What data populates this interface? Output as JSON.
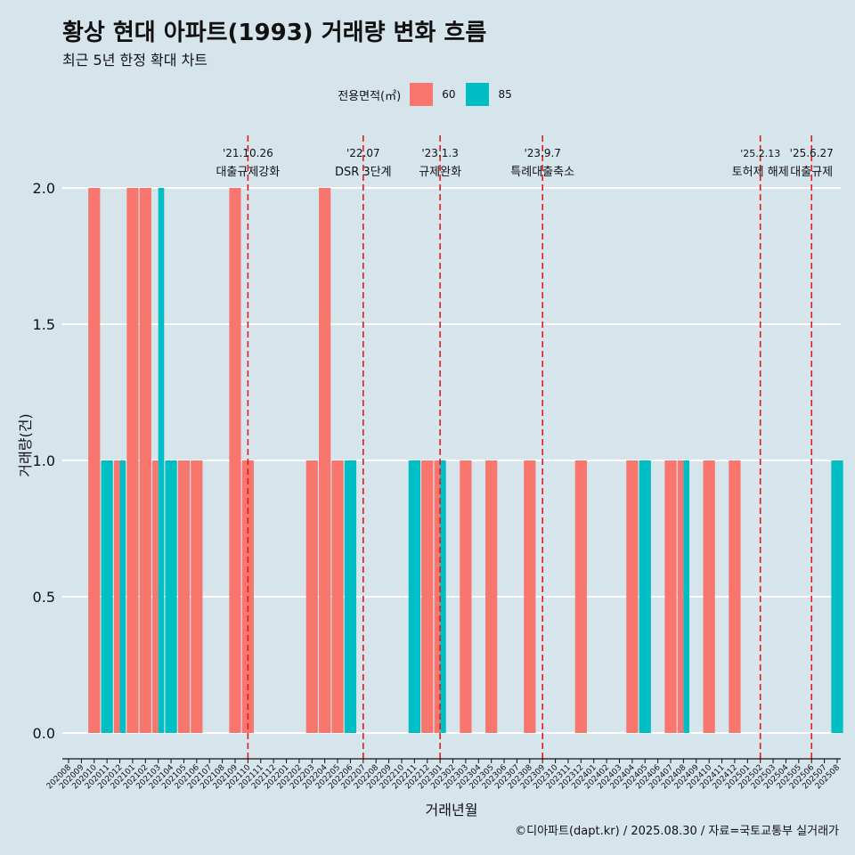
{
  "title": "황상 현대 아파트(1993) 거래량 변화 흐름",
  "subtitle": "최근 5년 한정 확대 차트",
  "credit": "©디아파트(dapt.kr) / 2025.08.30 / 자료=국토교통부 실거래가",
  "legend": {
    "title": "전용면적(㎡)",
    "items": [
      {
        "label": "60",
        "color": "#f8766d"
      },
      {
        "label": "85",
        "color": "#00bfc4"
      }
    ]
  },
  "chart_data": {
    "type": "bar",
    "xlabel": "거래년월",
    "ylabel": "거래량(건)",
    "ylim": [
      0,
      2
    ],
    "yticks": [
      "0.0",
      "0.5",
      "1.0",
      "1.5",
      "2.0"
    ],
    "categories": [
      "202008",
      "202009",
      "202010",
      "202011",
      "202012",
      "202101",
      "202102",
      "202103",
      "202104",
      "202105",
      "202106",
      "202107",
      "202108",
      "202109",
      "202110",
      "202111",
      "202112",
      "202201",
      "202202",
      "202203",
      "202204",
      "202205",
      "202206",
      "202207",
      "202208",
      "202209",
      "202210",
      "202211",
      "202212",
      "202301",
      "202302",
      "202303",
      "202304",
      "202305",
      "202306",
      "202307",
      "202308",
      "202309",
      "202310",
      "202311",
      "202312",
      "202401",
      "202402",
      "202403",
      "202404",
      "202405",
      "202406",
      "202407",
      "202408",
      "202409",
      "202410",
      "202411",
      "202412",
      "202501",
      "202502",
      "202503",
      "202504",
      "202505",
      "202506",
      "202507",
      "202508"
    ],
    "bars": [
      {
        "month": "202010",
        "size": "60",
        "value": 2
      },
      {
        "month": "202011",
        "size": "85",
        "value": 1
      },
      {
        "month": "202012",
        "size": "60",
        "value": 1
      },
      {
        "month": "202012",
        "size": "85",
        "value": 1
      },
      {
        "month": "202101",
        "size": "60",
        "value": 2
      },
      {
        "month": "202102",
        "size": "60",
        "value": 2
      },
      {
        "month": "202103",
        "size": "60",
        "value": 1
      },
      {
        "month": "202103",
        "size": "85",
        "value": 2
      },
      {
        "month": "202104",
        "size": "85",
        "value": 1
      },
      {
        "month": "202105",
        "size": "60",
        "value": 1
      },
      {
        "month": "202106",
        "size": "60",
        "value": 1
      },
      {
        "month": "202109",
        "size": "60",
        "value": 2
      },
      {
        "month": "202110",
        "size": "60",
        "value": 1
      },
      {
        "month": "202203",
        "size": "60",
        "value": 1
      },
      {
        "month": "202204",
        "size": "60",
        "value": 2
      },
      {
        "month": "202205",
        "size": "60",
        "value": 1
      },
      {
        "month": "202206",
        "size": "85",
        "value": 1
      },
      {
        "month": "202211",
        "size": "85",
        "value": 1
      },
      {
        "month": "202212",
        "size": "60",
        "value": 1
      },
      {
        "month": "202301",
        "size": "60",
        "value": 1
      },
      {
        "month": "202301",
        "size": "85",
        "value": 1
      },
      {
        "month": "202303",
        "size": "60",
        "value": 1
      },
      {
        "month": "202305",
        "size": "60",
        "value": 1
      },
      {
        "month": "202308",
        "size": "60",
        "value": 1
      },
      {
        "month": "202312",
        "size": "60",
        "value": 1
      },
      {
        "month": "202404",
        "size": "60",
        "value": 1
      },
      {
        "month": "202405",
        "size": "85",
        "value": 1
      },
      {
        "month": "202407",
        "size": "60",
        "value": 1
      },
      {
        "month": "202408",
        "size": "60",
        "value": 1
      },
      {
        "month": "202408",
        "size": "85",
        "value": 1
      },
      {
        "month": "202410",
        "size": "60",
        "value": 1
      },
      {
        "month": "202412",
        "size": "60",
        "value": 1
      },
      {
        "month": "202508",
        "size": "85",
        "value": 1
      }
    ],
    "annotations": [
      {
        "month": "202110",
        "date": "'21.10.26",
        "text": "대출규제강화"
      },
      {
        "month": "202207",
        "date": "'22.07",
        "text": "DSR 3단계"
      },
      {
        "month": "202301",
        "date": "'23.1.3",
        "text": "규제완화"
      },
      {
        "month": "202309",
        "date": "'23.9.7",
        "text": "특례대출축소"
      },
      {
        "month": "202502",
        "date": "'25.2.13",
        "text": "토허제 해제"
      },
      {
        "month": "202506",
        "date": "'25.6.27",
        "text": "대출규제"
      }
    ]
  }
}
